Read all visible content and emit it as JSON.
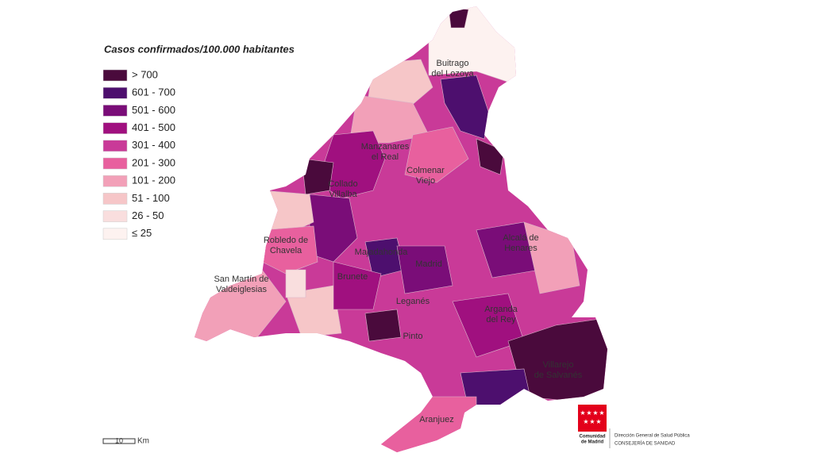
{
  "legend": {
    "title": "Casos confirmados/100.000 habitantes",
    "items": [
      {
        "label": "> 700",
        "color": "#4a0a3c"
      },
      {
        "label": "601 - 700",
        "color": "#4d0f6e"
      },
      {
        "label": "501 - 600",
        "color": "#7a0d78"
      },
      {
        "label": "401 - 500",
        "color": "#a0107f"
      },
      {
        "label": "301 - 400",
        "color": "#c93a98"
      },
      {
        "label": "201 - 300",
        "color": "#e8609e"
      },
      {
        "label": "101 - 200",
        "color": "#f2a0b8"
      },
      {
        "label": "51 - 100",
        "color": "#f6c6c8"
      },
      {
        "label": "26 - 50",
        "color": "#f9dede"
      },
      {
        "label": "≤ 25",
        "color": "#fdf2f0"
      }
    ]
  },
  "places": [
    {
      "lines": [
        "Buitrago",
        "del Lozoya"
      ]
    },
    {
      "lines": [
        "Manzanares",
        "el Real"
      ]
    },
    {
      "lines": [
        "Colmenar",
        "Viejo"
      ]
    },
    {
      "lines": [
        "Collado",
        "Villalba"
      ]
    },
    {
      "lines": [
        "Robledo de",
        "Chavela"
      ]
    },
    {
      "lines": [
        "Majadahonda"
      ]
    },
    {
      "lines": [
        "Madrid"
      ]
    },
    {
      "lines": [
        "Brunete"
      ]
    },
    {
      "lines": [
        "San Martín de",
        "Valdeiglesias"
      ]
    },
    {
      "lines": [
        "Leganés"
      ]
    },
    {
      "lines": [
        "Alcalá de",
        "Henares"
      ]
    },
    {
      "lines": [
        "Arganda",
        "del Rey"
      ]
    },
    {
      "lines": [
        "Pinto"
      ]
    },
    {
      "lines": [
        "Villarejo",
        "de Salvanés"
      ]
    },
    {
      "lines": [
        "Aranjuez"
      ]
    }
  ],
  "scale": {
    "value": "10",
    "unit": "Km"
  },
  "logo": {
    "name": [
      "Comunidad",
      "de Madrid"
    ],
    "department": "Dirección General de Salud Pública",
    "ministry": "CONSEJERÍA DE SANIDAD"
  }
}
